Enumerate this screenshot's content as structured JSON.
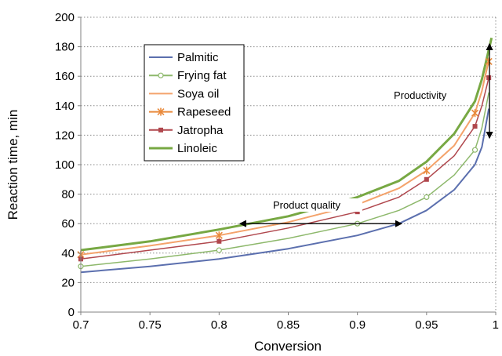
{
  "chart_data": {
    "type": "line",
    "xlabel": "Conversion",
    "ylabel": "Reaction time, min",
    "xlim": [
      0.7,
      1.0
    ],
    "ylim": [
      0,
      200
    ],
    "xticks": [
      0.7,
      0.75,
      0.8,
      0.85,
      0.9,
      0.95,
      1.0
    ],
    "xtick_labels": [
      "0.7",
      "0.75",
      "0.8",
      "0.85",
      "0.9",
      "0.95",
      "1"
    ],
    "yticks": [
      0,
      20,
      40,
      60,
      80,
      100,
      120,
      140,
      160,
      180,
      200
    ],
    "ytick_labels": [
      "0",
      "20",
      "40",
      "60",
      "80",
      "100",
      "120",
      "140",
      "160",
      "180",
      "200"
    ],
    "grid": "horizontal dotted",
    "legend_position": "upper-left inside plot",
    "series": [
      {
        "name": "Palmitic",
        "color": "#5b6fae",
        "marker": "none",
        "x": [
          0.7,
          0.75,
          0.8,
          0.85,
          0.9,
          0.93,
          0.95,
          0.97,
          0.985,
          0.99,
          0.995
        ],
        "y": [
          27,
          31,
          36,
          43,
          52,
          60,
          69,
          83,
          100,
          112,
          138
        ],
        "marker_x": [],
        "marker_y": []
      },
      {
        "name": "Frying fat",
        "color": "#8db86b",
        "marker": "circle",
        "x": [
          0.7,
          0.75,
          0.8,
          0.85,
          0.9,
          0.93,
          0.95,
          0.97,
          0.985,
          0.99,
          0.995
        ],
        "y": [
          31,
          36,
          42,
          50,
          60,
          69,
          78,
          93,
          110,
          125,
          149
        ],
        "marker_x": [
          0.7,
          0.8,
          0.9,
          0.95,
          0.985
        ],
        "marker_y": [
          31,
          42,
          60,
          78,
          110
        ]
      },
      {
        "name": "Soya oil",
        "color": "#f4a36c",
        "marker": "none",
        "x": [
          0.7,
          0.75,
          0.8,
          0.85,
          0.9,
          0.93,
          0.95,
          0.97,
          0.985,
          0.99,
          0.995
        ],
        "y": [
          39,
          45,
          52,
          61,
          73,
          84,
          96,
          113,
          135,
          150,
          172
        ],
        "marker_x": [],
        "marker_y": []
      },
      {
        "name": "Rapeseed",
        "color": "#e98a3c",
        "marker": "asterisk",
        "x": [
          0.7,
          0.75,
          0.8,
          0.85,
          0.9,
          0.93,
          0.95,
          0.97,
          0.985,
          0.99,
          0.995
        ],
        "y": [
          39,
          45,
          52,
          61,
          73,
          84,
          96,
          113,
          135,
          150,
          170
        ],
        "marker_x": [
          0.7,
          0.8,
          0.9,
          0.95,
          0.985,
          0.995
        ],
        "marker_y": [
          39,
          52,
          73,
          96,
          135,
          170
        ]
      },
      {
        "name": "Jatropha",
        "color": "#b0474d",
        "marker": "square",
        "x": [
          0.7,
          0.75,
          0.8,
          0.85,
          0.9,
          0.93,
          0.95,
          0.97,
          0.985,
          0.99,
          0.995
        ],
        "y": [
          36,
          42,
          48,
          57,
          68,
          78,
          90,
          106,
          126,
          140,
          159
        ],
        "marker_x": [
          0.7,
          0.8,
          0.9,
          0.95,
          0.985,
          0.995
        ],
        "marker_y": [
          36,
          48,
          68,
          90,
          126,
          159
        ]
      },
      {
        "name": "Linoleic",
        "color": "#77a843",
        "marker": "none",
        "x": [
          0.7,
          0.75,
          0.8,
          0.85,
          0.9,
          0.93,
          0.95,
          0.97,
          0.985,
          0.99,
          0.995,
          0.997
        ],
        "y": [
          42,
          48,
          56,
          65,
          78,
          89,
          102,
          121,
          143,
          158,
          178,
          186
        ],
        "marker_x": [],
        "marker_y": []
      }
    ],
    "annotations": [
      {
        "text": "Product quality",
        "arrow": "double-headed horizontal",
        "from": [
          0.815,
          60
        ],
        "to": [
          0.932,
          60
        ]
      },
      {
        "text": "Productivity",
        "arrow": "double-headed vertical",
        "from": [
          0.9955,
          118
        ],
        "to": [
          0.9955,
          182
        ]
      }
    ]
  }
}
